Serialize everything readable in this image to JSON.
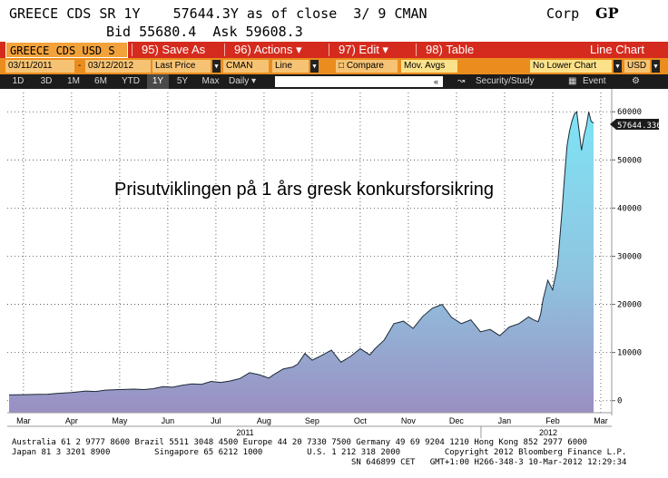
{
  "header": {
    "line1": "GREECE CDS SR 1Y    57644.3Y as of close  3/ 9 CMAN",
    "line2": "Bid 55680.4  Ask 59608.3",
    "corp": "Corp",
    "gp": "GP"
  },
  "function_bar": {
    "ticker": "GREECE CDS USD S",
    "items": [
      {
        "num": "95)",
        "label": "Save As"
      },
      {
        "num": "96)",
        "label": "Actions ▾"
      },
      {
        "num": "97)",
        "label": "Edit ▾"
      },
      {
        "num": "98)",
        "label": "Table"
      }
    ],
    "right_label": "Line Chart"
  },
  "settings_bar": {
    "start_date": "03/11/2011",
    "dash": "-",
    "end_date": "03/12/2012",
    "price_field": "Last Price",
    "source": "CMAN",
    "chart_style": "Line",
    "compare": "Compare",
    "mov_avgs": "Mov. Avgs",
    "lower_chart": "No Lower Chart",
    "currency": "USD"
  },
  "toolbar": {
    "periods": [
      "1D",
      "3D",
      "1M",
      "6M",
      "YTD",
      "1Y",
      "5Y",
      "Max"
    ],
    "selected_period": "1Y",
    "frequency": "Daily ▾",
    "search_btn": "«",
    "security_study": "Security/Study",
    "event": "Event"
  },
  "chart_data": {
    "type": "area",
    "annotation": "Prisutviklingen på 1 års gresk konkursforsikring",
    "last_value_label": "57644.336",
    "ylim": [
      -2500,
      64000
    ],
    "yticks": [
      0,
      10000,
      20000,
      30000,
      40000,
      50000,
      60000
    ],
    "xticks": [
      "Mar",
      "Apr",
      "May",
      "Jun",
      "Jul",
      "Aug",
      "Sep",
      "Oct",
      "Nov",
      "Dec",
      "Jan",
      "Feb",
      "Mar"
    ],
    "year_labels": [
      "2011",
      "2012"
    ],
    "x": [
      0,
      0.3,
      0.6,
      0.8,
      1.0,
      1.3,
      1.6,
      1.8,
      2.0,
      2.3,
      2.6,
      2.8,
      3.0,
      3.2,
      3.4,
      3.6,
      3.8,
      4.0,
      4.2,
      4.4,
      4.6,
      4.8,
      5.0,
      5.2,
      5.4,
      5.5,
      5.7,
      5.9,
      6.0,
      6.15,
      6.3,
      6.5,
      6.7,
      6.9,
      7.1,
      7.3,
      7.5,
      7.6,
      7.8,
      8.0,
      8.2,
      8.4,
      8.6,
      8.8,
      9.0,
      9.2,
      9.4,
      9.6,
      9.8,
      10.0,
      10.2,
      10.4,
      10.6,
      10.8,
      10.9,
      11.0,
      11.05,
      11.1,
      11.2,
      11.3,
      11.35,
      11.4,
      11.45,
      11.5,
      11.55,
      11.6,
      11.65,
      11.7,
      11.75,
      11.8,
      11.85,
      11.9,
      11.95,
      12.0,
      12.05,
      12.1,
      12.15
    ],
    "series": [
      {
        "values": [
          1200,
          1250,
          1300,
          1350,
          1500,
          1700,
          2000,
          1900,
          2200,
          2300,
          2400,
          2300,
          2500,
          2900,
          2800,
          3200,
          3500,
          3400,
          4000,
          3800,
          4100,
          4600,
          5800,
          5400,
          4700,
          5400,
          6600,
          7000,
          7600,
          9800,
          8400,
          9400,
          10500,
          8000,
          9200,
          10800,
          9500,
          10700,
          12600,
          16000,
          16500,
          15000,
          17500,
          19200,
          20000,
          17300,
          16000,
          16800,
          14300,
          14800,
          13500,
          15300,
          16000,
          17400,
          16800,
          16400,
          18000,
          21000,
          25000,
          23000,
          25500,
          28000,
          34000,
          40000,
          47000,
          53000,
          56000,
          58000,
          59500,
          60000,
          56000,
          52000,
          55000,
          57000,
          60000,
          58000,
          57644
        ]
      }
    ]
  },
  "footer": {
    "line1": "Australia 61 2 9777 8600 Brazil 5511 3048 4500 Europe 44 20 7330 7500 Germany 49 69 9204 1210 Hong Kong 852 2977 6000",
    "line2": "Japan 81 3 3201 8900         Singapore 65 6212 1000         U.S. 1 212 318 2000         Copyright 2012 Bloomberg Finance L.P.",
    "line3": "SN 646899 CET   GMT+1:00 H266-348-3 10-Mar-2012 12:29:34"
  },
  "colors": {
    "function_bar": "#d52b1e",
    "settings_bar": "#ea8d1e",
    "toolbar": "#1c1c1c",
    "area_top": "#7fe3f5",
    "area_bottom": "#9a8fc2",
    "line": "#1f2a36"
  }
}
